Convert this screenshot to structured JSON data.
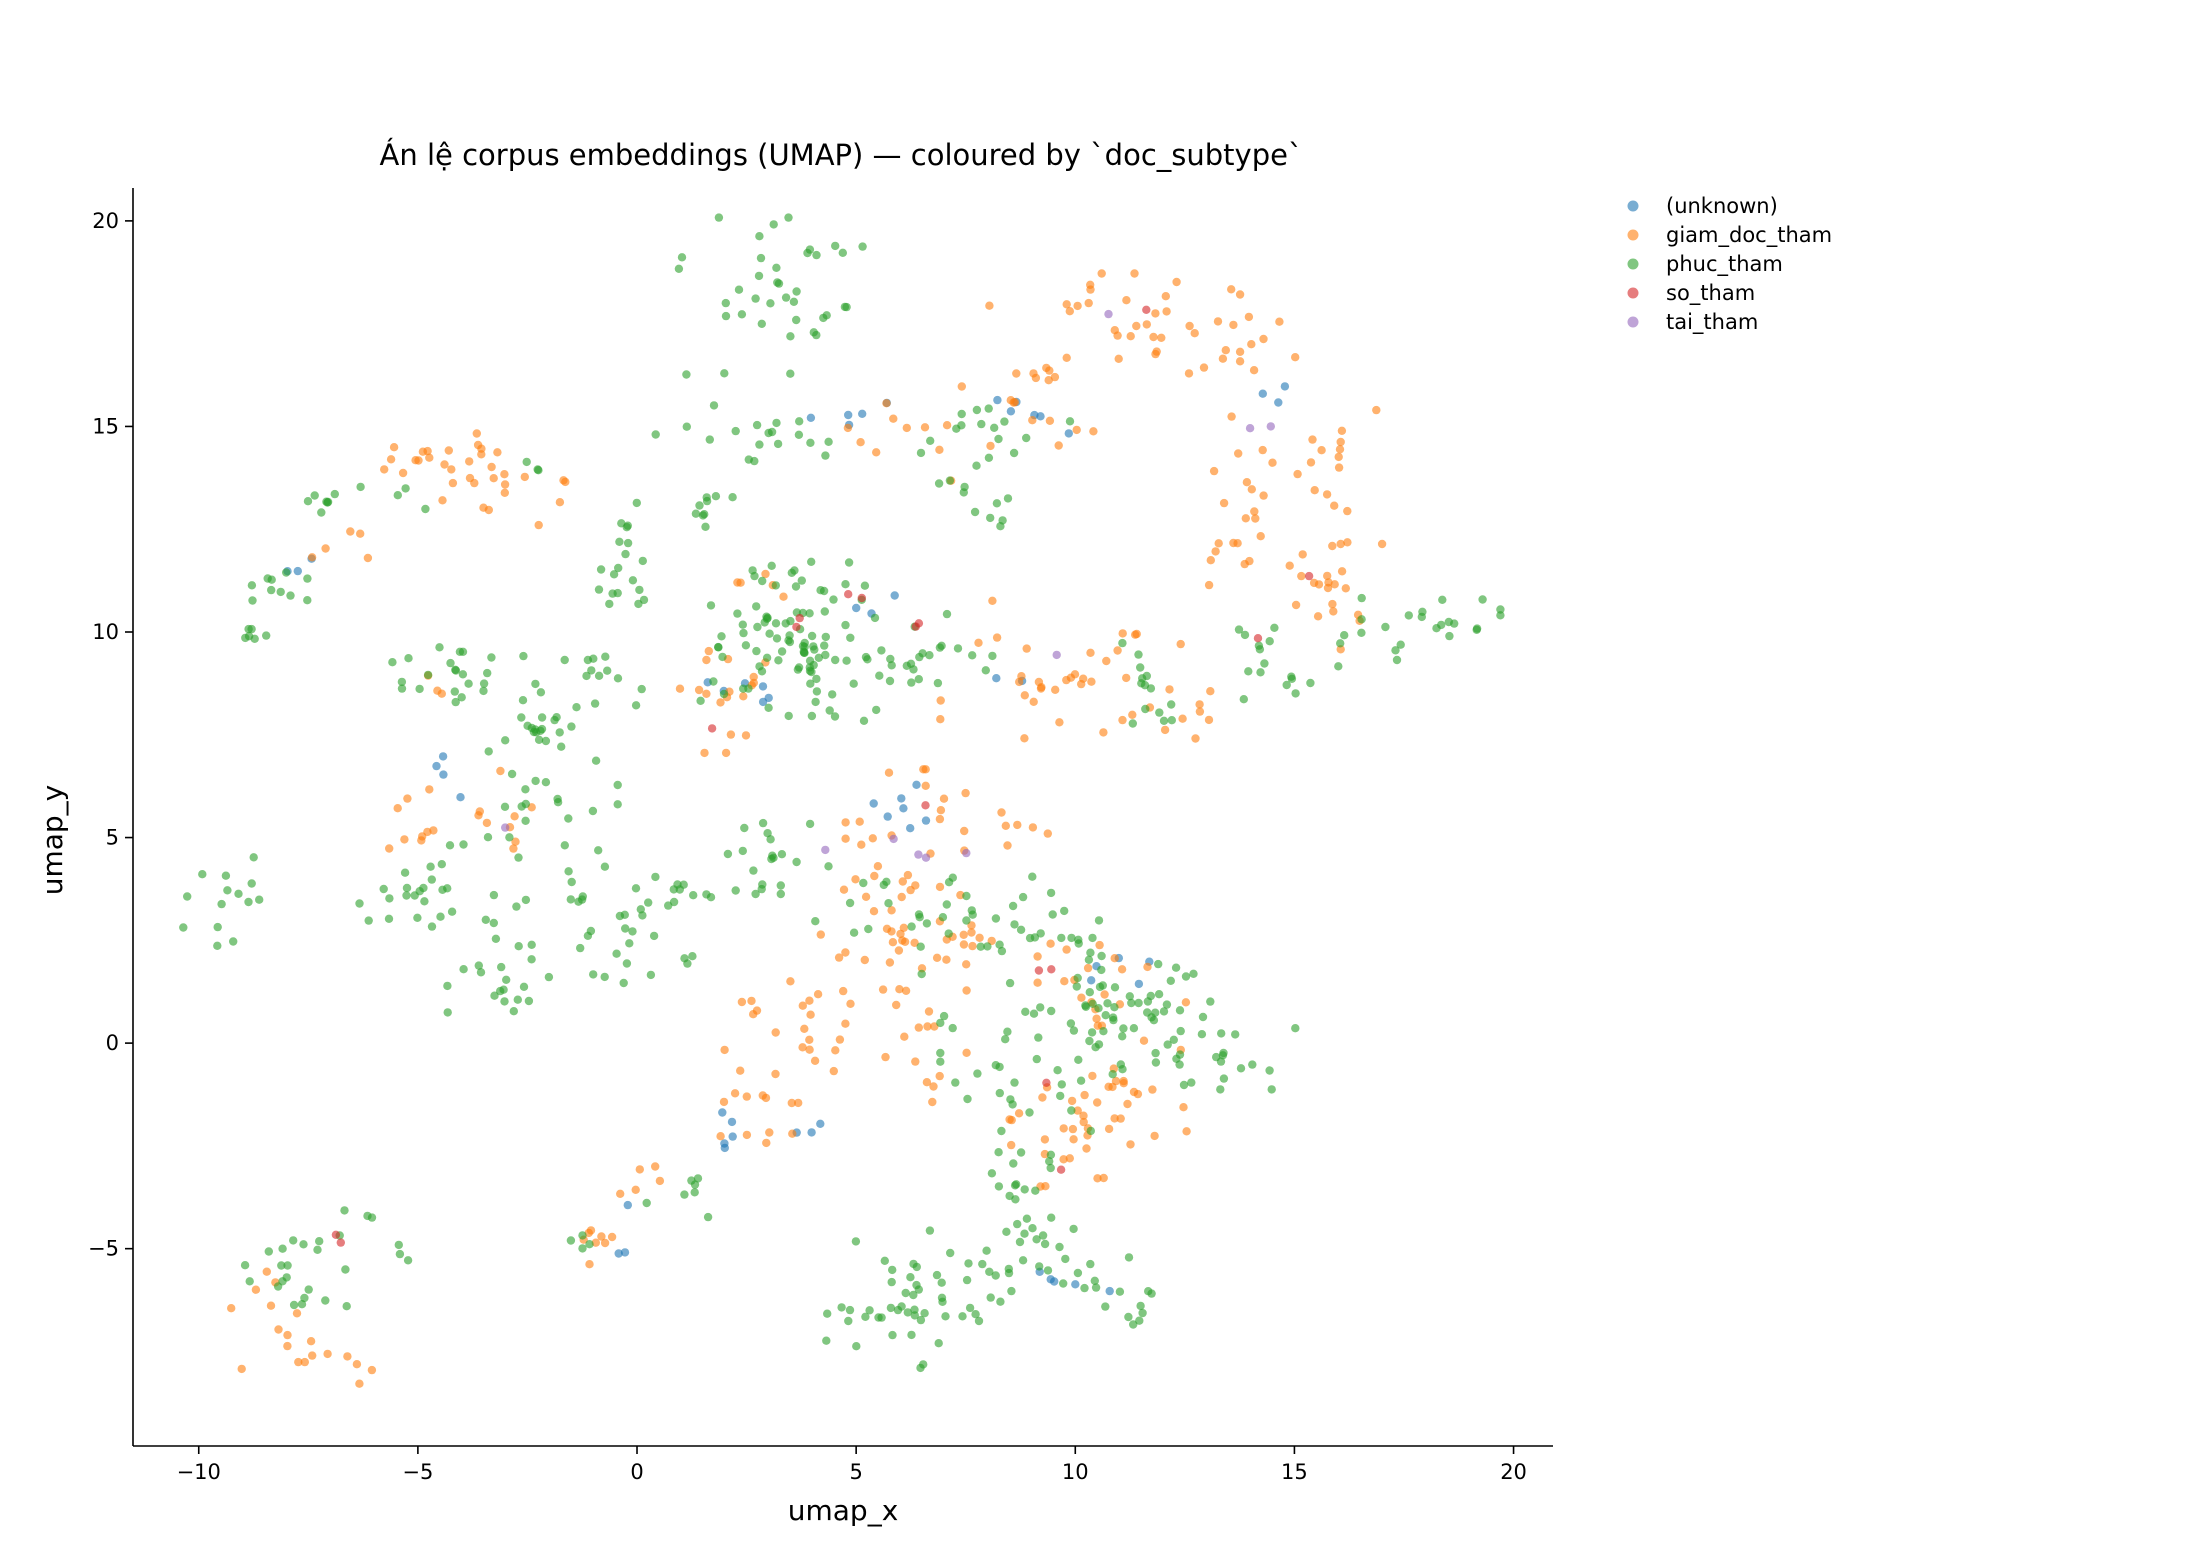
{
  "chart_data": {
    "type": "scatter",
    "title": "Án lệ corpus embeddings (UMAP) — coloured by `doc_subtype`",
    "xlabel": "umap_x",
    "ylabel": "umap_y",
    "xlim": [
      -11.5,
      20.9
    ],
    "ylim": [
      -9.8,
      20.8
    ],
    "xticks": [
      -10,
      -5,
      0,
      5,
      10,
      15,
      20
    ],
    "yticks": [
      -5,
      0,
      5,
      10,
      15,
      20
    ],
    "xtick_labels": [
      "−10",
      "−5",
      "0",
      "5",
      "10",
      "15",
      "20"
    ],
    "ytick_labels": [
      "−5",
      "0",
      "5",
      "10",
      "15",
      "20"
    ],
    "grid": false,
    "legend_position": "outside-right-top",
    "point_alpha": 0.6,
    "series": [
      {
        "name": "(unknown)",
        "color": "#1f77b4",
        "clusters": [
          {
            "cx": 9.0,
            "cy": 14.8,
            "sx": 0.4,
            "sy": 0.5,
            "n": 6
          },
          {
            "cx": 4.5,
            "cy": 15.2,
            "sx": 0.7,
            "sy": 0.3,
            "n": 5
          },
          {
            "cx": 2.2,
            "cy": 8.4,
            "sx": 0.4,
            "sy": 0.3,
            "n": 6
          },
          {
            "cx": 5.6,
            "cy": 5.5,
            "sx": 0.6,
            "sy": 0.5,
            "n": 7
          },
          {
            "cx": 1.9,
            "cy": -2.0,
            "sx": 0.2,
            "sy": 0.25,
            "n": 5
          },
          {
            "cx": 10.9,
            "cy": 1.8,
            "sx": 0.5,
            "sy": 0.3,
            "n": 5
          },
          {
            "cx": 9.6,
            "cy": -5.8,
            "sx": 0.6,
            "sy": 0.2,
            "n": 5
          },
          {
            "cx": -7.6,
            "cy": 11.6,
            "sx": 0.3,
            "sy": 0.3,
            "n": 3
          },
          {
            "cx": -4.3,
            "cy": 6.6,
            "sx": 0.3,
            "sy": 0.5,
            "n": 4
          },
          {
            "cx": 14.6,
            "cy": 15.7,
            "sx": 0.3,
            "sy": 0.3,
            "n": 3
          },
          {
            "cx": 5.0,
            "cy": 10.8,
            "sx": 0.4,
            "sy": 0.2,
            "n": 3
          },
          {
            "cx": -0.5,
            "cy": -4.6,
            "sx": 0.4,
            "sy": 0.5,
            "n": 3
          },
          {
            "cx": 4.0,
            "cy": -2.3,
            "sx": 0.4,
            "sy": 0.3,
            "n": 3
          },
          {
            "cx": 8.3,
            "cy": 8.9,
            "sx": 0.3,
            "sy": 0.2,
            "n": 2
          }
        ]
      },
      {
        "name": "giam_doc_tham",
        "color": "#ff7f0e",
        "clusters": [
          {
            "cx": -4.5,
            "cy": 14.2,
            "sx": 0.9,
            "sy": 0.35,
            "n": 18
          },
          {
            "cx": -2.9,
            "cy": 13.7,
            "sx": 0.7,
            "sy": 0.5,
            "n": 16
          },
          {
            "cx": -6.7,
            "cy": 12.2,
            "sx": 0.5,
            "sy": 0.3,
            "n": 5
          },
          {
            "cx": 10.9,
            "cy": 17.4,
            "sx": 1.3,
            "sy": 0.6,
            "n": 28
          },
          {
            "cx": 13.3,
            "cy": 17.1,
            "sx": 0.9,
            "sy": 0.6,
            "n": 16
          },
          {
            "cx": 9.3,
            "cy": 15.6,
            "sx": 0.9,
            "sy": 0.5,
            "n": 14
          },
          {
            "cx": 6.4,
            "cy": 15.0,
            "sx": 1.1,
            "sy": 0.6,
            "n": 12
          },
          {
            "cx": 14.1,
            "cy": 13.7,
            "sx": 0.5,
            "sy": 0.7,
            "n": 14
          },
          {
            "cx": 15.9,
            "cy": 13.9,
            "sx": 0.5,
            "sy": 0.8,
            "n": 16
          },
          {
            "cx": 15.8,
            "cy": 11.0,
            "sx": 0.6,
            "sy": 0.8,
            "n": 20
          },
          {
            "cx": 13.6,
            "cy": 11.8,
            "sx": 0.4,
            "sy": 0.3,
            "n": 7
          },
          {
            "cx": 10.0,
            "cy": 9.0,
            "sx": 1.4,
            "sy": 0.8,
            "n": 34
          },
          {
            "cx": 12.4,
            "cy": 8.2,
            "sx": 0.5,
            "sy": 0.5,
            "n": 8
          },
          {
            "cx": 2.0,
            "cy": 8.6,
            "sx": 0.5,
            "sy": 0.7,
            "n": 18
          },
          {
            "cx": 2.3,
            "cy": 11.3,
            "sx": 0.5,
            "sy": 0.4,
            "n": 5
          },
          {
            "cx": -5.2,
            "cy": 5.4,
            "sx": 0.5,
            "sy": 0.4,
            "n": 9
          },
          {
            "cx": -3.0,
            "cy": 5.3,
            "sx": 0.4,
            "sy": 0.6,
            "n": 9
          },
          {
            "cx": -4.6,
            "cy": 8.6,
            "sx": 0.3,
            "sy": 0.3,
            "n": 3
          },
          {
            "cx": 6.3,
            "cy": 4.9,
            "sx": 0.7,
            "sy": 0.8,
            "n": 22
          },
          {
            "cx": 8.9,
            "cy": 5.3,
            "sx": 0.4,
            "sy": 0.3,
            "n": 6
          },
          {
            "cx": 5.9,
            "cy": 2.6,
            "sx": 0.8,
            "sy": 0.7,
            "n": 28
          },
          {
            "cx": 7.5,
            "cy": 2.3,
            "sx": 0.6,
            "sy": 0.3,
            "n": 10
          },
          {
            "cx": 3.9,
            "cy": 0.1,
            "sx": 1.0,
            "sy": 0.9,
            "n": 26
          },
          {
            "cx": 6.2,
            "cy": 0.2,
            "sx": 0.6,
            "sy": 0.8,
            "n": 12
          },
          {
            "cx": 3.2,
            "cy": -2.1,
            "sx": 0.6,
            "sy": 0.4,
            "n": 10
          },
          {
            "cx": 10.9,
            "cy": 1.5,
            "sx": 0.8,
            "sy": 0.5,
            "n": 18
          },
          {
            "cx": 10.0,
            "cy": -1.6,
            "sx": 0.8,
            "sy": 0.6,
            "n": 22
          },
          {
            "cx": 11.0,
            "cy": -1.0,
            "sx": 0.7,
            "sy": 0.9,
            "n": 16
          },
          {
            "cx": 9.8,
            "cy": -3.0,
            "sx": 0.6,
            "sy": 0.3,
            "n": 10
          },
          {
            "cx": 6.8,
            "cy": -1.0,
            "sx": 0.3,
            "sy": 0.2,
            "n": 4
          },
          {
            "cx": -0.9,
            "cy": -4.6,
            "sx": 0.4,
            "sy": 0.5,
            "n": 8
          },
          {
            "cx": 0.3,
            "cy": -3.4,
            "sx": 0.4,
            "sy": 0.3,
            "n": 5
          },
          {
            "cx": -7.7,
            "cy": -7.3,
            "sx": 0.6,
            "sy": 0.4,
            "n": 10
          },
          {
            "cx": -8.6,
            "cy": -5.9,
            "sx": 0.3,
            "sy": 0.3,
            "n": 5
          },
          {
            "cx": -6.4,
            "cy": -8.0,
            "sx": 0.3,
            "sy": 0.2,
            "n": 4
          }
        ]
      },
      {
        "name": "phuc_tham",
        "color": "#2ca02c",
        "clusters": [
          {
            "cx": 3.1,
            "cy": 18.1,
            "sx": 1.1,
            "sy": 0.9,
            "n": 38
          },
          {
            "cx": 3.3,
            "cy": 14.8,
            "sx": 1.5,
            "sy": 0.4,
            "n": 18
          },
          {
            "cx": 7.9,
            "cy": 15.0,
            "sx": 0.9,
            "sy": 0.5,
            "n": 14
          },
          {
            "cx": 7.8,
            "cy": 13.3,
            "sx": 0.6,
            "sy": 0.5,
            "n": 12
          },
          {
            "cx": 1.3,
            "cy": 13.2,
            "sx": 0.4,
            "sy": 0.4,
            "n": 9
          },
          {
            "cx": -0.2,
            "cy": 12.4,
            "sx": 0.5,
            "sy": 0.4,
            "n": 10
          },
          {
            "cx": -0.5,
            "cy": 11.0,
            "sx": 0.4,
            "sy": 0.3,
            "n": 9
          },
          {
            "cx": -6.9,
            "cy": 13.0,
            "sx": 0.4,
            "sy": 0.4,
            "n": 8
          },
          {
            "cx": -7.9,
            "cy": 11.0,
            "sx": 0.5,
            "sy": 0.5,
            "n": 10
          },
          {
            "cx": -8.8,
            "cy": 10.0,
            "sx": 0.3,
            "sy": 0.2,
            "n": 6
          },
          {
            "cx": -2.3,
            "cy": 14.1,
            "sx": 0.2,
            "sy": 0.2,
            "n": 3
          },
          {
            "cx": -5.0,
            "cy": 13.4,
            "sx": 0.3,
            "sy": 0.2,
            "n": 3
          },
          {
            "cx": 3.8,
            "cy": 9.6,
            "sx": 1.2,
            "sy": 0.8,
            "n": 80
          },
          {
            "cx": 6.4,
            "cy": 9.5,
            "sx": 0.8,
            "sy": 0.6,
            "n": 22
          },
          {
            "cx": 4.0,
            "cy": 11.2,
            "sx": 0.9,
            "sy": 0.4,
            "n": 16
          },
          {
            "cx": -4.2,
            "cy": 9.0,
            "sx": 0.9,
            "sy": 0.4,
            "n": 20
          },
          {
            "cx": -2.0,
            "cy": 8.0,
            "sx": 0.9,
            "sy": 0.6,
            "n": 28
          },
          {
            "cx": -0.7,
            "cy": 9.0,
            "sx": 0.4,
            "sy": 0.4,
            "n": 7
          },
          {
            "cx": -2.2,
            "cy": 5.6,
            "sx": 0.8,
            "sy": 0.7,
            "n": 22
          },
          {
            "cx": -5.0,
            "cy": 3.6,
            "sx": 0.7,
            "sy": 0.6,
            "n": 22
          },
          {
            "cx": -3.2,
            "cy": 3.1,
            "sx": 0.3,
            "sy": 0.3,
            "n": 5
          },
          {
            "cx": -0.5,
            "cy": 3.0,
            "sx": 1.0,
            "sy": 0.8,
            "n": 36
          },
          {
            "cx": 0.9,
            "cy": 3.6,
            "sx": 0.4,
            "sy": 0.4,
            "n": 6
          },
          {
            "cx": -3.3,
            "cy": 1.3,
            "sx": 0.8,
            "sy": 0.4,
            "n": 16
          },
          {
            "cx": -9.5,
            "cy": 3.4,
            "sx": 0.4,
            "sy": 0.6,
            "n": 14
          },
          {
            "cx": 2.9,
            "cy": 4.5,
            "sx": 0.6,
            "sy": 0.5,
            "n": 18
          },
          {
            "cx": 4.6,
            "cy": 3.2,
            "sx": 0.6,
            "sy": 0.5,
            "n": 10
          },
          {
            "cx": 7.4,
            "cy": 3.0,
            "sx": 0.9,
            "sy": 0.6,
            "n": 22
          },
          {
            "cx": 9.5,
            "cy": 3.2,
            "sx": 0.6,
            "sy": 0.5,
            "n": 10
          },
          {
            "cx": 10.0,
            "cy": 0.8,
            "sx": 1.4,
            "sy": 0.8,
            "n": 66
          },
          {
            "cx": 12.3,
            "cy": 0.3,
            "sx": 0.8,
            "sy": 0.6,
            "n": 20
          },
          {
            "cx": 13.7,
            "cy": -0.3,
            "sx": 0.6,
            "sy": 0.5,
            "n": 12
          },
          {
            "cx": 9.0,
            "cy": -1.2,
            "sx": 0.7,
            "sy": 0.6,
            "n": 16
          },
          {
            "cx": 8.9,
            "cy": -3.6,
            "sx": 0.5,
            "sy": 0.5,
            "n": 14
          },
          {
            "cx": 9.2,
            "cy": -4.6,
            "sx": 0.5,
            "sy": 0.4,
            "n": 12
          },
          {
            "cx": 7.2,
            "cy": -5.8,
            "sx": 1.3,
            "sy": 0.7,
            "n": 46
          },
          {
            "cx": 5.6,
            "cy": -6.8,
            "sx": 0.7,
            "sy": 0.5,
            "n": 16
          },
          {
            "cx": 10.9,
            "cy": -5.9,
            "sx": 0.5,
            "sy": 0.4,
            "n": 10
          },
          {
            "cx": 11.3,
            "cy": -6.6,
            "sx": 0.3,
            "sy": 0.2,
            "n": 4
          },
          {
            "cx": 11.7,
            "cy": 9.1,
            "sx": 0.4,
            "sy": 0.4,
            "n": 8
          },
          {
            "cx": 12.0,
            "cy": 8.0,
            "sx": 0.4,
            "sy": 0.3,
            "n": 6
          },
          {
            "cx": 14.6,
            "cy": 8.7,
            "sx": 0.5,
            "sy": 0.4,
            "n": 10
          },
          {
            "cx": 14.0,
            "cy": 10.0,
            "sx": 0.3,
            "sy": 0.2,
            "n": 5
          },
          {
            "cx": 16.6,
            "cy": 10.0,
            "sx": 0.6,
            "sy": 0.4,
            "n": 12
          },
          {
            "cx": 18.6,
            "cy": 10.4,
            "sx": 0.5,
            "sy": 0.3,
            "n": 12
          },
          {
            "cx": 1.1,
            "cy": -3.7,
            "sx": 0.4,
            "sy": 0.4,
            "n": 7
          },
          {
            "cx": -1.2,
            "cy": -4.9,
            "sx": 0.3,
            "sy": 0.2,
            "n": 4
          },
          {
            "cx": -7.8,
            "cy": -5.3,
            "sx": 0.6,
            "sy": 0.5,
            "n": 20
          },
          {
            "cx": -6.6,
            "cy": -4.5,
            "sx": 0.3,
            "sy": 0.2,
            "n": 4
          },
          {
            "cx": -5.4,
            "cy": -5.1,
            "sx": 0.2,
            "sy": 0.2,
            "n": 3
          }
        ]
      },
      {
        "name": "so_tham",
        "color": "#d62728",
        "clusters": [
          {
            "cx": 4.9,
            "cy": 10.9,
            "sx": 0.2,
            "sy": 0.1,
            "n": 2
          },
          {
            "cx": 3.5,
            "cy": 10.2,
            "sx": 0.2,
            "sy": 0.2,
            "n": 2
          },
          {
            "cx": 6.6,
            "cy": 10.0,
            "sx": 0.2,
            "sy": 0.2,
            "n": 2
          },
          {
            "cx": 1.6,
            "cy": 7.8,
            "sx": 0.1,
            "sy": 0.1,
            "n": 1
          },
          {
            "cx": 6.7,
            "cy": 5.8,
            "sx": 0.1,
            "sy": 0.1,
            "n": 1
          },
          {
            "cx": 9.2,
            "cy": 1.8,
            "sx": 0.2,
            "sy": 0.1,
            "n": 2
          },
          {
            "cx": 9.2,
            "cy": -1.0,
            "sx": 0.2,
            "sy": 0.1,
            "n": 1
          },
          {
            "cx": 9.6,
            "cy": -3.1,
            "sx": 0.1,
            "sy": 0.1,
            "n": 1
          },
          {
            "cx": 15.4,
            "cy": 11.2,
            "sx": 0.1,
            "sy": 0.1,
            "n": 1
          },
          {
            "cx": 14.1,
            "cy": 9.8,
            "sx": 0.1,
            "sy": 0.1,
            "n": 1
          },
          {
            "cx": 11.6,
            "cy": 17.9,
            "sx": 0.1,
            "sy": 0.1,
            "n": 1
          },
          {
            "cx": -6.9,
            "cy": -4.7,
            "sx": 0.1,
            "sy": 0.1,
            "n": 2
          }
        ]
      },
      {
        "name": "tai_tham",
        "color": "#9467bd",
        "clusters": [
          {
            "cx": 10.7,
            "cy": 17.7,
            "sx": 0.1,
            "sy": 0.1,
            "n": 1
          },
          {
            "cx": 14.3,
            "cy": 14.9,
            "sx": 0.2,
            "sy": 0.1,
            "n": 2
          },
          {
            "cx": 9.5,
            "cy": 9.5,
            "sx": 0.1,
            "sy": 0.1,
            "n": 1
          },
          {
            "cx": 7.0,
            "cy": 4.5,
            "sx": 0.3,
            "sy": 0.3,
            "n": 3
          },
          {
            "cx": 5.9,
            "cy": 4.9,
            "sx": 0.1,
            "sy": 0.1,
            "n": 1
          },
          {
            "cx": 4.2,
            "cy": 4.8,
            "sx": 0.1,
            "sy": 0.1,
            "n": 1
          },
          {
            "cx": -3.0,
            "cy": 5.3,
            "sx": 0.1,
            "sy": 0.1,
            "n": 1
          }
        ]
      }
    ]
  }
}
